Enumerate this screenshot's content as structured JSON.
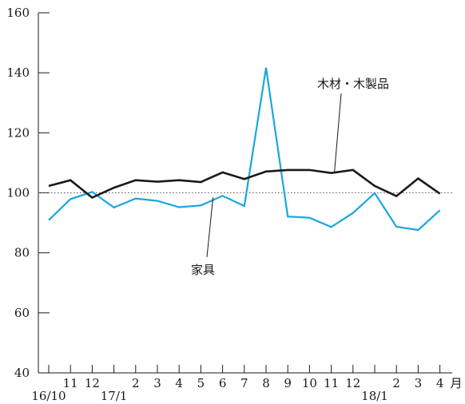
{
  "chart_data": {
    "type": "line",
    "title": "",
    "xlabel": "月",
    "ylabel": "",
    "ylim": [
      40,
      160
    ],
    "yticks": [
      40,
      60,
      80,
      100,
      120,
      140,
      160
    ],
    "reference_line": 100,
    "grid": false,
    "x_tick_labels": [
      "",
      "11",
      "12",
      "",
      "2",
      "3",
      "4",
      "5",
      "6",
      "7",
      "8",
      "9",
      "10",
      "11",
      "12",
      "",
      "2",
      "3",
      "4"
    ],
    "x_year_labels": [
      {
        "index": 0,
        "label": "16/10"
      },
      {
        "index": 3,
        "label": "17/1"
      },
      {
        "index": 15,
        "label": "18/1"
      }
    ],
    "categories": [
      "16/10",
      "16/11",
      "16/12",
      "17/1",
      "17/2",
      "17/3",
      "17/4",
      "17/5",
      "17/6",
      "17/7",
      "17/8",
      "17/9",
      "17/10",
      "17/11",
      "17/12",
      "18/1",
      "18/2",
      "18/3",
      "18/4"
    ],
    "series": [
      {
        "name": "木材・木製品",
        "color": "#1a1a1a",
        "values": [
          102.3,
          104.2,
          98.4,
          101.7,
          104.2,
          103.7,
          104.2,
          103.6,
          106.8,
          104.6,
          107.1,
          107.6,
          107.6,
          106.6,
          107.6,
          102.3,
          98.9,
          104.8,
          99.7
        ]
      },
      {
        "name": "家具",
        "color": "#1aa6dd",
        "values": [
          90.9,
          97.9,
          100.3,
          95.1,
          98.1,
          97.3,
          95.2,
          95.8,
          99.0,
          95.6,
          141.7,
          92.1,
          91.7,
          88.6,
          93.3,
          99.9,
          88.7,
          87.6,
          94.2
        ]
      }
    ],
    "annotations": [
      {
        "series": "木材・木製品",
        "text": "木材・木製品"
      },
      {
        "series": "家具",
        "text": "家具"
      }
    ]
  }
}
